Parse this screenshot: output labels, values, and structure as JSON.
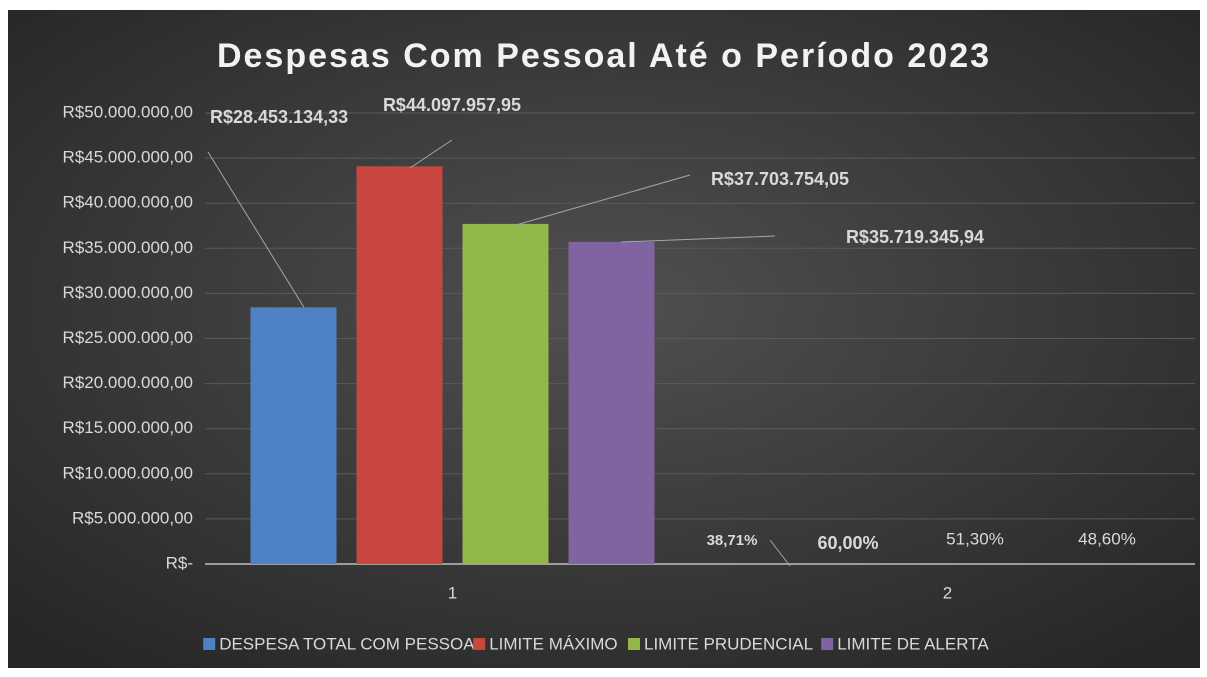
{
  "chart_data": {
    "type": "bar",
    "title": "Despesas Com Pessoal Até o Período 2023",
    "categories": [
      "1",
      "2"
    ],
    "series": [
      {
        "name": "DESPESA TOTAL COM PESSOAL",
        "color": "#4f81c7",
        "values": [
          28453134.33,
          38.71
        ],
        "value_labels": [
          "R$28.453.134,33",
          "38,71%"
        ]
      },
      {
        "name": "LIMITE MÁXIMO",
        "color": "#c9463f",
        "values": [
          44097957.95,
          60.0
        ],
        "value_labels": [
          "R$44.097.957,95",
          "60,00%"
        ]
      },
      {
        "name": "LIMITE PRUDENCIAL",
        "color": "#93b84a",
        "values": [
          37703754.05,
          51.3
        ],
        "value_labels": [
          "R$37.703.754,05",
          "51,30%"
        ]
      },
      {
        "name": "LIMITE DE ALERTA",
        "color": "#8064a2",
        "values": [
          35719345.94,
          48.6
        ],
        "value_labels": [
          "R$35.719.345,94",
          "48,60%"
        ]
      }
    ],
    "ylim": [
      0,
      50000000
    ],
    "yticks": [
      {
        "value": 0,
        "label": "R$-"
      },
      {
        "value": 5000000,
        "label": "R$5.000.000,00"
      },
      {
        "value": 10000000,
        "label": "R$10.000.000,00"
      },
      {
        "value": 15000000,
        "label": "R$15.000.000,00"
      },
      {
        "value": 20000000,
        "label": "R$20.000.000,00"
      },
      {
        "value": 25000000,
        "label": "R$25.000.000,00"
      },
      {
        "value": 30000000,
        "label": "R$30.000.000,00"
      },
      {
        "value": 35000000,
        "label": "R$35.000.000,00"
      },
      {
        "value": 40000000,
        "label": "R$40.000.000,00"
      },
      {
        "value": 45000000,
        "label": "R$45.000.000,00"
      },
      {
        "value": 50000000,
        "label": "R$50.000.000,00"
      }
    ],
    "grid": true,
    "legend": "bottom"
  }
}
